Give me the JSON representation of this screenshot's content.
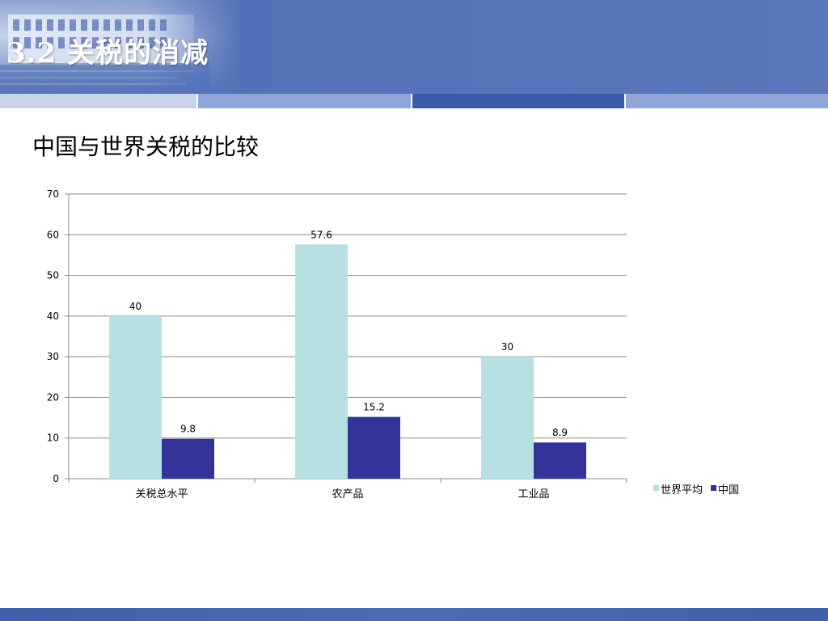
{
  "slide": {
    "title": "3.2  关税的消减",
    "subtitle": "中国与世界关税的比较"
  },
  "colors": {
    "world": "#b7e0e3",
    "china": "#333399",
    "grid": "#888888"
  },
  "chart_data": {
    "type": "bar",
    "title": "",
    "xlabel": "",
    "ylabel": "",
    "categories": [
      "关税总水平",
      "农产品",
      "工业品"
    ],
    "series": [
      {
        "name": "世界平均",
        "values": [
          40,
          57.6,
          30
        ],
        "labels": [
          "40",
          "57.6",
          "30"
        ]
      },
      {
        "name": "中国",
        "values": [
          9.8,
          15.2,
          8.9
        ],
        "labels": [
          "9.8",
          "15.2",
          "8.9"
        ]
      }
    ],
    "ylim": [
      0,
      70
    ],
    "yticks": [
      "0",
      "10",
      "20",
      "30",
      "40",
      "50",
      "60",
      "70"
    ],
    "grid": true,
    "legend": "right"
  }
}
